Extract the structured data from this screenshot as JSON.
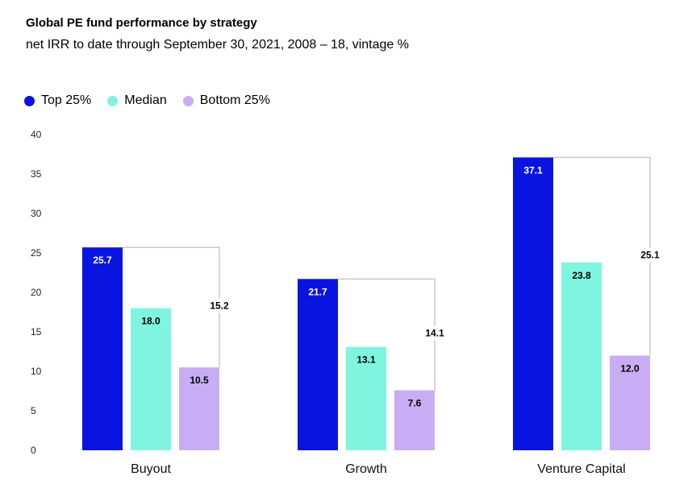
{
  "colors": {
    "top": "#0a14e0",
    "median": "#7ff5df",
    "bottom": "#c8adf4"
  },
  "chart_data": {
    "type": "bar",
    "title": "Global PE fund performance by strategy",
    "subtitle": "net IRR to date through September 30, 2021, 2008 – 18, vintage %",
    "categories": [
      "Buyout",
      "Growth",
      "Venture Capital"
    ],
    "series": [
      {
        "name": "Top 25%",
        "values": [
          25.7,
          21.7,
          37.1
        ],
        "labels": [
          "25.7",
          "21.7",
          "37.1"
        ]
      },
      {
        "name": "Median",
        "values": [
          18.0,
          13.1,
          23.8
        ],
        "labels": [
          "18.0",
          "13.1",
          "23.8"
        ]
      },
      {
        "name": "Bottom 25%",
        "values": [
          10.5,
          7.6,
          12.0
        ],
        "labels": [
          "10.5",
          "7.6",
          "12.0"
        ]
      }
    ],
    "spread": {
      "values": [
        15.2,
        14.1,
        25.1
      ],
      "labels": [
        "15.2",
        "14.1",
        "25.1"
      ]
    },
    "ylim": [
      0,
      40
    ],
    "yticks": [
      "0",
      "5",
      "10",
      "15",
      "20",
      "25",
      "30",
      "35",
      "40"
    ],
    "grid": false,
    "legend_position": "top-left"
  }
}
